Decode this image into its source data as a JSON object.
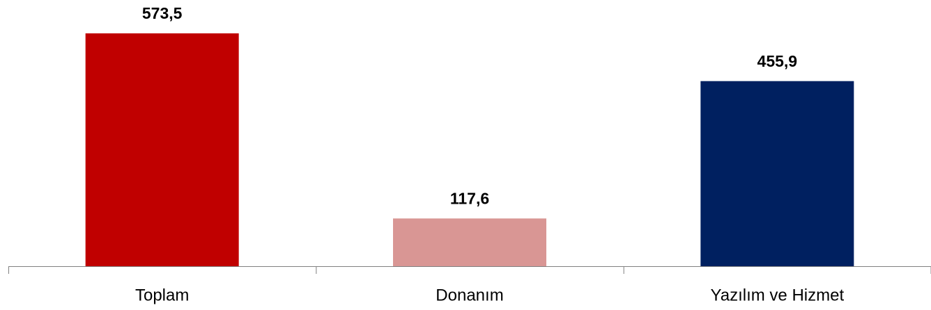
{
  "chart_data": {
    "type": "bar",
    "categories": [
      "Toplam",
      "Donanım",
      "Yazılım ve Hizmet"
    ],
    "values": [
      573.5,
      117.6,
      455.9
    ],
    "value_labels": [
      "573,5",
      "117,6",
      "455,9"
    ],
    "colors": [
      "#c00000",
      "#d99694",
      "#002060"
    ]
  }
}
